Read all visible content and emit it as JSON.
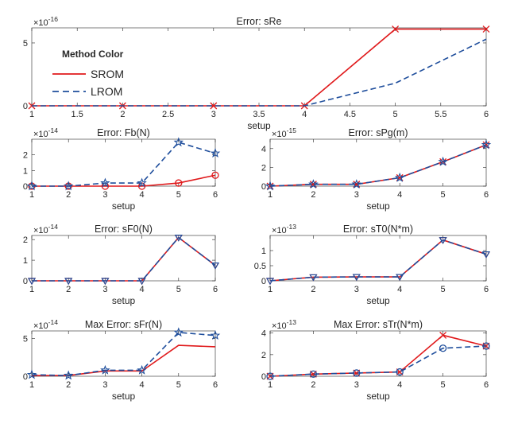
{
  "colors": {
    "srom": "#e0191b",
    "lrom": "#1f4e9c",
    "axis": "#262626"
  },
  "legend": {
    "title": "Method Color",
    "entries": [
      {
        "label": "SROM",
        "style": "solid",
        "color": "#e0191b"
      },
      {
        "label": "LROM",
        "style": "dashed",
        "color": "#1f4e9c"
      }
    ]
  },
  "chart_data": [
    {
      "type": "line",
      "title": "Error: sRe",
      "xlabel": "setup",
      "ylabel": "",
      "exponent_label": "×10",
      "exponent_power": "-16",
      "xlim": [
        1,
        6
      ],
      "ylim": [
        0,
        6.2
      ],
      "xticks": [
        1,
        1.5,
        2,
        2.5,
        3,
        3.5,
        4,
        4.5,
        5,
        5.5,
        6
      ],
      "xtick_labels": [
        "1",
        "1.5",
        "2",
        "2.5",
        "3",
        "3.5",
        "4",
        "4.5",
        "5",
        "5.5",
        "6"
      ],
      "yticks": [
        0,
        5
      ],
      "ytick_labels": [
        "0",
        "5"
      ],
      "x": [
        1,
        2,
        3,
        4,
        5,
        6
      ],
      "series": [
        {
          "name": "SROM",
          "values": [
            0,
            0,
            0,
            0,
            6.1,
            6.1
          ],
          "style": "solid",
          "color": "#e0191b",
          "marker": "x"
        },
        {
          "name": "LROM",
          "values": [
            0,
            0,
            0,
            0,
            1.8,
            5.3
          ],
          "style": "dashed",
          "color": "#1f4e9c",
          "marker": ""
        }
      ]
    },
    {
      "type": "line",
      "title": "Error: Fb(N)",
      "xlabel": "setup",
      "ylabel": "",
      "exponent_label": "×10",
      "exponent_power": "-14",
      "xlim": [
        1,
        6
      ],
      "ylim": [
        0,
        3
      ],
      "xticks": [
        1,
        2,
        3,
        4,
        5,
        6
      ],
      "xtick_labels": [
        "1",
        "2",
        "3",
        "4",
        "5",
        "6"
      ],
      "yticks": [
        0,
        1,
        2
      ],
      "ytick_labels": [
        "0",
        "1",
        "2"
      ],
      "x": [
        1,
        2,
        3,
        4,
        5,
        6
      ],
      "series": [
        {
          "name": "SROM",
          "values": [
            0,
            0,
            0,
            0,
            0.2,
            0.7
          ],
          "style": "solid",
          "color": "#e0191b",
          "marker": "o"
        },
        {
          "name": "LROM",
          "values": [
            0,
            0,
            0.2,
            0.2,
            2.8,
            2.1
          ],
          "style": "dashed",
          "color": "#1f4e9c",
          "marker": "*"
        }
      ]
    },
    {
      "type": "line",
      "title": "Error: sPg(m)",
      "xlabel": "setup",
      "ylabel": "",
      "exponent_label": "×10",
      "exponent_power": "-15",
      "xlim": [
        1,
        6
      ],
      "ylim": [
        0,
        5
      ],
      "xticks": [
        1,
        2,
        3,
        4,
        5,
        6
      ],
      "xtick_labels": [
        "1",
        "2",
        "3",
        "4",
        "5",
        "6"
      ],
      "yticks": [
        0,
        2,
        4
      ],
      "ytick_labels": [
        "0",
        "2",
        "4"
      ],
      "x": [
        1,
        2,
        3,
        4,
        5,
        6
      ],
      "series": [
        {
          "name": "SROM",
          "values": [
            0,
            0.2,
            0.2,
            0.9,
            2.6,
            4.4
          ],
          "style": "solid",
          "color": "#e0191b",
          "marker": "x"
        },
        {
          "name": "LROM",
          "values": [
            0,
            0.2,
            0.2,
            0.9,
            2.6,
            4.4
          ],
          "style": "dashed",
          "color": "#1f4e9c",
          "marker": "*"
        }
      ]
    },
    {
      "type": "line",
      "title": "Error: sF0(N)",
      "xlabel": "setup",
      "ylabel": "",
      "exponent_label": "×10",
      "exponent_power": "-14",
      "xlim": [
        1,
        6
      ],
      "ylim": [
        0,
        2.2
      ],
      "xticks": [
        1,
        2,
        3,
        4,
        5,
        6
      ],
      "xtick_labels": [
        "1",
        "2",
        "3",
        "4",
        "5",
        "6"
      ],
      "yticks": [
        0,
        1,
        2
      ],
      "ytick_labels": [
        "0",
        "1",
        "2"
      ],
      "x": [
        1,
        2,
        3,
        4,
        5,
        6
      ],
      "series": [
        {
          "name": "SROM",
          "values": [
            0,
            0,
            0,
            0,
            2.1,
            0.75
          ],
          "style": "solid",
          "color": "#e0191b",
          "marker": "v"
        },
        {
          "name": "LROM",
          "values": [
            0,
            0,
            0,
            0,
            2.1,
            0.75
          ],
          "style": "dashed",
          "color": "#1f4e9c",
          "marker": "v"
        }
      ]
    },
    {
      "type": "line",
      "title": "Error: sT0(N*m)",
      "xlabel": "setup",
      "ylabel": "",
      "exponent_label": "×10",
      "exponent_power": "-13",
      "xlim": [
        1,
        6
      ],
      "ylim": [
        0,
        1.5
      ],
      "xticks": [
        1,
        2,
        3,
        4,
        5,
        6
      ],
      "xtick_labels": [
        "1",
        "2",
        "3",
        "4",
        "5",
        "6"
      ],
      "yticks": [
        0,
        0.5,
        1
      ],
      "ytick_labels": [
        "0",
        "0.5",
        "1"
      ],
      "x": [
        1,
        2,
        3,
        4,
        5,
        6
      ],
      "series": [
        {
          "name": "SROM",
          "values": [
            0,
            0.12,
            0.13,
            0.13,
            1.35,
            0.88
          ],
          "style": "solid",
          "color": "#e0191b",
          "marker": "v"
        },
        {
          "name": "LROM",
          "values": [
            0,
            0.12,
            0.13,
            0.13,
            1.35,
            0.88
          ],
          "style": "dashed",
          "color": "#1f4e9c",
          "marker": "v"
        }
      ]
    },
    {
      "type": "line",
      "title": "Max Error: sFr(N)",
      "xlabel": "setup",
      "ylabel": "",
      "exponent_label": "×10",
      "exponent_power": "-14",
      "xlim": [
        1,
        6
      ],
      "ylim": [
        0,
        6
      ],
      "xticks": [
        1,
        2,
        3,
        4,
        5,
        6
      ],
      "xtick_labels": [
        "1",
        "2",
        "3",
        "4",
        "5",
        "6"
      ],
      "yticks": [
        0,
        5
      ],
      "ytick_labels": [
        "0",
        "5"
      ],
      "x": [
        1,
        2,
        3,
        4,
        5,
        6
      ],
      "series": [
        {
          "name": "SROM",
          "values": [
            0.1,
            0.1,
            0.7,
            0.7,
            4.1,
            3.9
          ],
          "style": "solid",
          "color": "#e0191b",
          "marker": ""
        },
        {
          "name": "LROM",
          "values": [
            0.2,
            0.1,
            0.8,
            0.8,
            5.8,
            5.4
          ],
          "style": "dashed",
          "color": "#1f4e9c",
          "marker": "*"
        }
      ]
    },
    {
      "type": "line",
      "title": "Max Error: sTr(N*m)",
      "xlabel": "setup",
      "ylabel": "",
      "exponent_label": "×10",
      "exponent_power": "-13",
      "xlim": [
        1,
        6
      ],
      "ylim": [
        0,
        4.2
      ],
      "xticks": [
        1,
        2,
        3,
        4,
        5,
        6
      ],
      "xtick_labels": [
        "1",
        "2",
        "3",
        "4",
        "5",
        "6"
      ],
      "yticks": [
        0,
        2,
        4
      ],
      "ytick_labels": [
        "0",
        "2",
        "4"
      ],
      "x": [
        1,
        2,
        3,
        4,
        5,
        6
      ],
      "series": [
        {
          "name": "SROM",
          "values": [
            0,
            0.2,
            0.3,
            0.4,
            3.8,
            2.8
          ],
          "style": "solid",
          "color": "#e0191b",
          "marker": "x"
        },
        {
          "name": "LROM",
          "values": [
            0,
            0.2,
            0.3,
            0.4,
            2.6,
            2.8
          ],
          "style": "dashed",
          "color": "#1f4e9c",
          "marker": "o"
        }
      ]
    }
  ]
}
